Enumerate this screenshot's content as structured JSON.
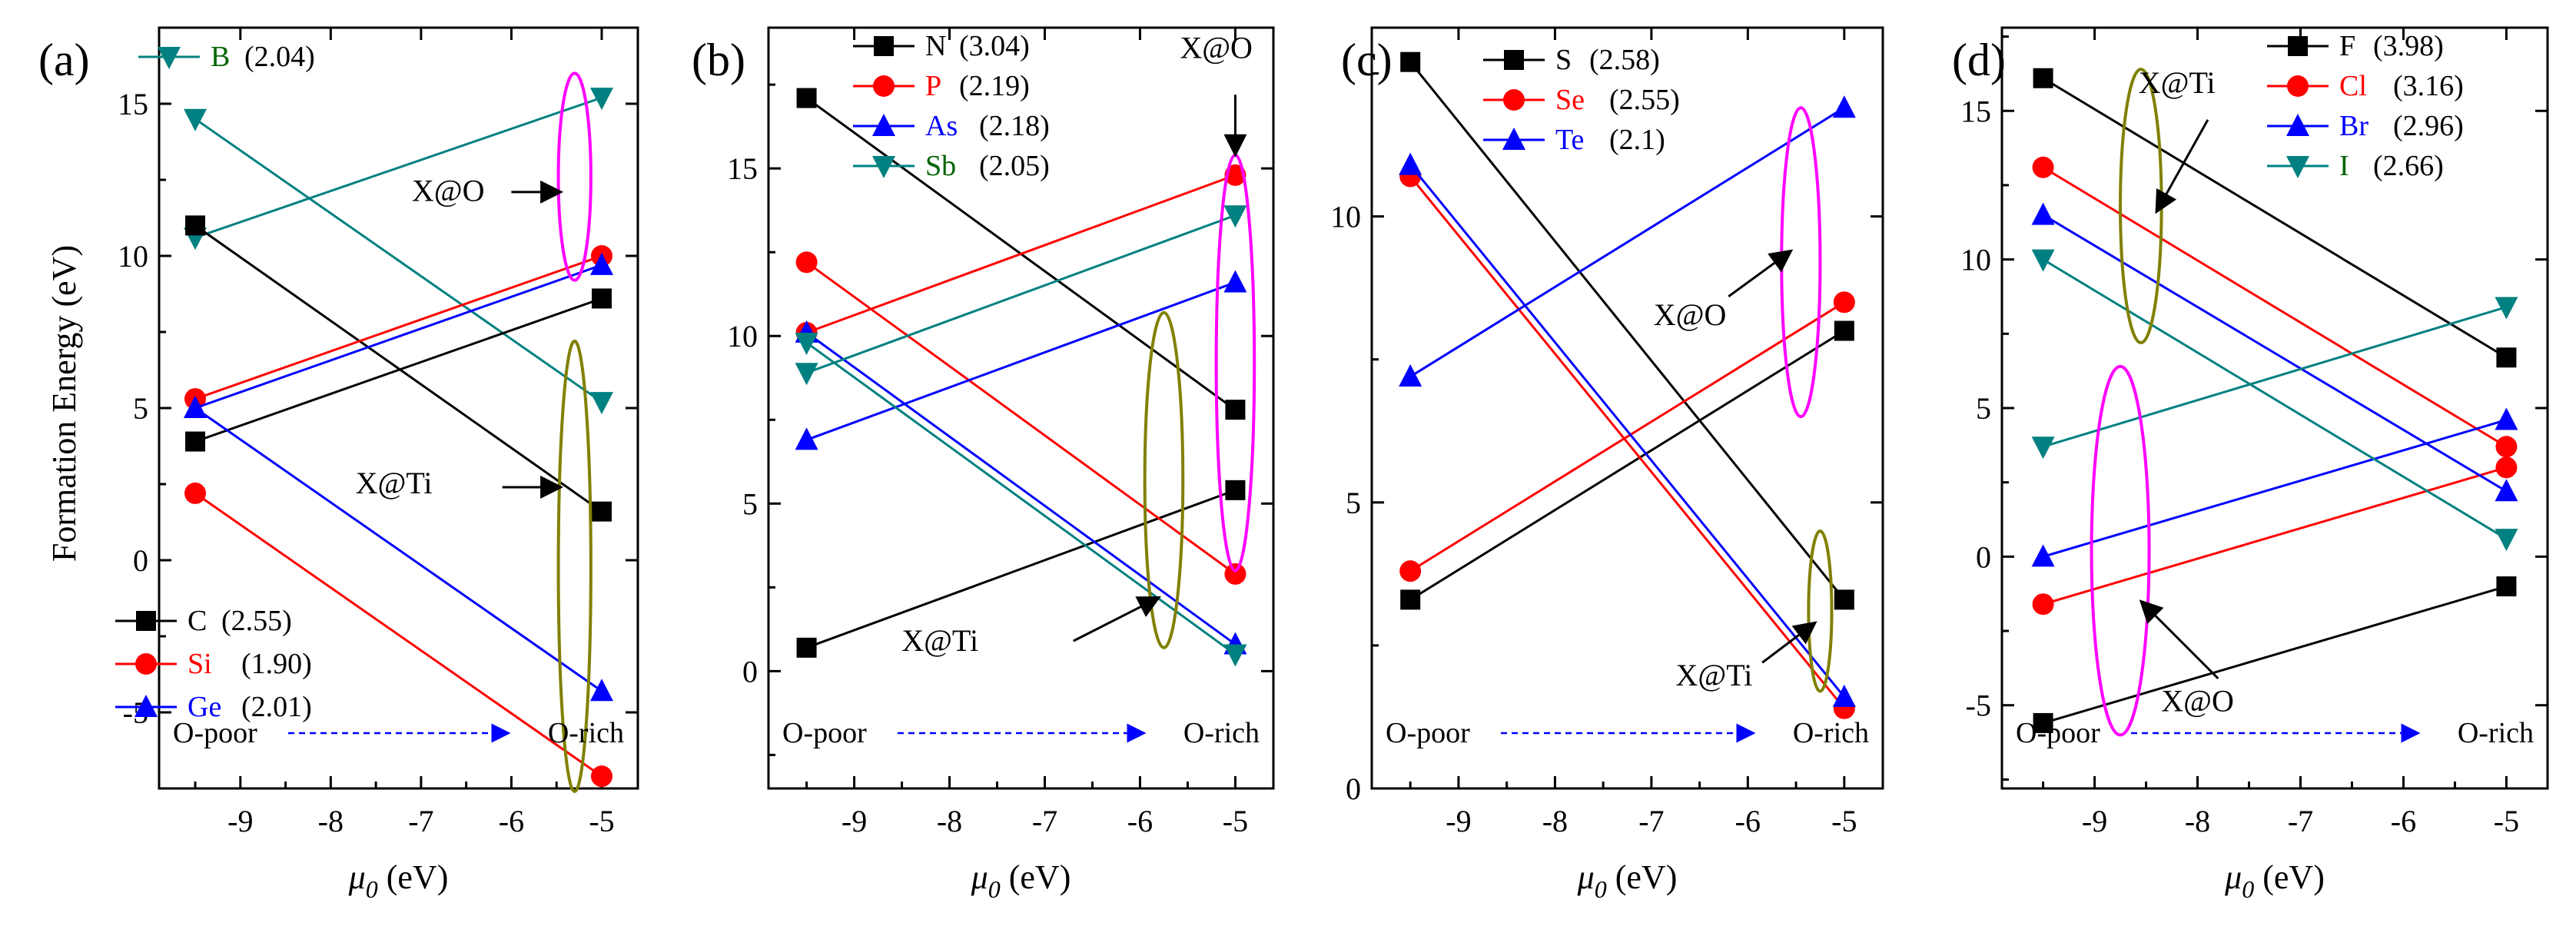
{
  "colors": {
    "black": "#000000",
    "red": "#ff0000",
    "blue": "#0000ff",
    "teal": "#008080",
    "green_label": "#006400",
    "magenta": "#ff00ff",
    "olive": "#808000",
    "arrow_blue": "#0000ff"
  },
  "ylabel_shared": "Formation Energy (eV)",
  "xlabel_main": "μ",
  "xlabel_sub": "0",
  "xlabel_unit": " (eV)",
  "o_poor": "O-poor",
  "o_rich": "O-rich",
  "chart_data": [
    {
      "type": "line",
      "panel": "(a)",
      "x": [
        -9.5,
        -5
      ],
      "xlim": [
        -9.9,
        -4.6
      ],
      "ylim": [
        -7.5,
        17.5
      ],
      "xticks": [
        -9,
        -8,
        -7,
        -6,
        -5
      ],
      "yticks": [
        -5,
        0,
        5,
        10,
        15
      ],
      "series": [
        {
          "name": "B",
          "value": "(2.04)",
          "color": "teal",
          "name_color": "green_label",
          "marker": "tri_down",
          "lines": [
            [
              14.5,
              5.2
            ],
            [
              10.6,
              15.2
            ]
          ]
        },
        {
          "name": "C",
          "value": "(2.55)",
          "color": "black",
          "name_color": "black",
          "marker": "square",
          "lines": [
            [
              11.0,
              1.6
            ],
            [
              3.9,
              8.6
            ]
          ]
        },
        {
          "name": "Si",
          "value": "(1.90)",
          "color": "red",
          "name_color": "red",
          "marker": "circle",
          "lines": [
            [
              5.3,
              10.0
            ],
            [
              2.2,
              -7.1
            ]
          ]
        },
        {
          "name": "Ge",
          "value": "(2.01)",
          "color": "blue",
          "name_color": "blue",
          "marker": "tri_up",
          "lines": [
            [
              5.0,
              9.7
            ],
            [
              5.0,
              -4.3
            ]
          ]
        }
      ],
      "annotations": [
        {
          "text": "X@O",
          "color": "magenta",
          "ellipse": {
            "cx": -5.3,
            "cy": 12.6,
            "rx": 0.18,
            "ry": 3.4
          },
          "label_at": [
            -6.7,
            11.8
          ],
          "arrow_from": [
            -6.0,
            12.1
          ],
          "arrow_to": [
            -5.45,
            12.1
          ]
        },
        {
          "text": "X@Ti",
          "color": "olive",
          "ellipse": {
            "cx": -5.3,
            "cy": -0.2,
            "rx": 0.18,
            "ry": 7.4
          },
          "label_at": [
            -7.3,
            2.2
          ],
          "arrow_from": [
            -6.1,
            2.4
          ],
          "arrow_to": [
            -5.45,
            2.4
          ]
        }
      ]
    },
    {
      "type": "line",
      "panel": "(b)",
      "x": [
        -9.5,
        -5
      ],
      "xlim": [
        -9.9,
        -4.6
      ],
      "ylim": [
        -3.5,
        19.2
      ],
      "xticks": [
        -9,
        -8,
        -7,
        -6,
        -5
      ],
      "yticks": [
        0,
        5,
        10,
        15
      ],
      "series": [
        {
          "name": "N",
          "value": "(3.04)",
          "color": "black",
          "name_color": "black",
          "marker": "square",
          "lines": [
            [
              17.1,
              7.8
            ],
            [
              0.7,
              5.4
            ]
          ]
        },
        {
          "name": "P",
          "value": "(2.19)",
          "color": "red",
          "name_color": "red",
          "marker": "circle",
          "lines": [
            [
              10.1,
              14.8
            ],
            [
              12.2,
              2.9
            ]
          ]
        },
        {
          "name": "As",
          "value": "(2.18)",
          "color": "blue",
          "name_color": "blue",
          "marker": "tri_up",
          "lines": [
            [
              6.9,
              11.6
            ],
            [
              10.1,
              0.8
            ]
          ]
        },
        {
          "name": "Sb",
          "value": "(2.05)",
          "color": "teal",
          "name_color": "green_label",
          "marker": "tri_down",
          "lines": [
            [
              8.9,
              13.6
            ],
            [
              9.8,
              0.5
            ]
          ]
        }
      ],
      "annotations": [
        {
          "text": "X@O",
          "color": "magenta",
          "ellipse": {
            "cx": -5.0,
            "cy": 9.2,
            "rx": 0.2,
            "ry": 6.2
          },
          "label_at": [
            -5.2,
            18.3
          ],
          "arrow_from": [
            -5.0,
            17.2
          ],
          "arrow_to": [
            -5.0,
            15.4
          ]
        },
        {
          "text": "X@Ti",
          "color": "olive",
          "ellipse": {
            "cx": -5.75,
            "cy": 5.7,
            "rx": 0.2,
            "ry": 5.0
          },
          "label_at": [
            -8.1,
            0.6
          ],
          "arrow_from": [
            -6.7,
            0.9
          ],
          "arrow_to": [
            -5.8,
            2.2
          ]
        }
      ]
    },
    {
      "type": "line",
      "panel": "(c)",
      "x": [
        -9.5,
        -5
      ],
      "xlim": [
        -9.9,
        -4.6
      ],
      "ylim": [
        0,
        13.3
      ],
      "xticks": [
        -9,
        -8,
        -7,
        -6,
        -5
      ],
      "yticks": [
        0,
        5,
        10
      ],
      "series": [
        {
          "name": "S",
          "value": "(2.58)",
          "color": "black",
          "name_color": "black",
          "marker": "square",
          "lines": [
            [
              12.7,
              3.3
            ],
            [
              3.3,
              8.0
            ]
          ]
        },
        {
          "name": "Se",
          "value": "(2.55)",
          "color": "red",
          "name_color": "red",
          "marker": "circle",
          "lines": [
            [
              10.7,
              1.4
            ],
            [
              3.8,
              8.5
            ]
          ]
        },
        {
          "name": "Te",
          "value": "(2.1)",
          "color": "blue",
          "name_color": "blue",
          "marker": "tri_up",
          "lines": [
            [
              10.9,
              1.6
            ],
            [
              7.2,
              11.9
            ]
          ]
        }
      ],
      "annotations": [
        {
          "text": "X@O",
          "color": "magenta",
          "ellipse": {
            "cx": -5.45,
            "cy": 9.2,
            "rx": 0.2,
            "ry": 2.7
          },
          "label_at": [
            -6.6,
            8.1
          ],
          "arrow_from": [
            -6.2,
            8.6
          ],
          "arrow_to": [
            -5.55,
            9.4
          ]
        },
        {
          "text": "X@Ti",
          "color": "olive",
          "ellipse": {
            "cx": -5.25,
            "cy": 3.1,
            "rx": 0.12,
            "ry": 1.4
          },
          "label_at": [
            -6.35,
            1.8
          ],
          "arrow_from": [
            -5.85,
            2.2
          ],
          "arrow_to": [
            -5.3,
            2.9
          ]
        }
      ]
    },
    {
      "type": "line",
      "panel": "(d)",
      "x": [
        -9.5,
        -5
      ],
      "xlim": [
        -9.9,
        -4.6
      ],
      "ylim": [
        -7.8,
        17.8
      ],
      "xticks": [
        -9,
        -8,
        -7,
        -6,
        -5
      ],
      "yticks": [
        -5,
        0,
        5,
        10,
        15
      ],
      "series": [
        {
          "name": "F",
          "value": "(3.98)",
          "color": "black",
          "name_color": "black",
          "marker": "square",
          "lines": [
            [
              16.1,
              6.7
            ],
            [
              -5.6,
              -1.0
            ]
          ]
        },
        {
          "name": "Cl",
          "value": "(3.16)",
          "color": "red",
          "name_color": "red",
          "marker": "circle",
          "lines": [
            [
              13.1,
              3.7
            ],
            [
              -1.6,
              3.0
            ]
          ]
        },
        {
          "name": "Br",
          "value": "(2.96)",
          "color": "blue",
          "name_color": "blue",
          "marker": "tri_up",
          "lines": [
            [
              11.5,
              2.2
            ],
            [
              0.0,
              4.6
            ]
          ]
        },
        {
          "name": "I",
          "value": "(2.66)",
          "color": "teal",
          "name_color": "green_label",
          "marker": "tri_down",
          "lines": [
            [
              10.0,
              0.6
            ],
            [
              3.7,
              8.4
            ]
          ]
        }
      ],
      "annotations": [
        {
          "text": "X@Ti",
          "color": "olive",
          "ellipse": {
            "cx": -8.55,
            "cy": 11.8,
            "rx": 0.2,
            "ry": 4.6
          },
          "label_at": [
            -8.2,
            15.6
          ],
          "arrow_from": [
            -7.9,
            14.7
          ],
          "arrow_to": [
            -8.4,
            11.6
          ]
        },
        {
          "text": "X@O",
          "color": "magenta",
          "ellipse": {
            "cx": -8.75,
            "cy": 0.2,
            "rx": 0.28,
            "ry": 6.2
          },
          "label_at": [
            -8.0,
            -5.2
          ],
          "arrow_from": [
            -7.8,
            -4.1
          ],
          "arrow_to": [
            -8.55,
            -1.5
          ]
        }
      ]
    }
  ]
}
